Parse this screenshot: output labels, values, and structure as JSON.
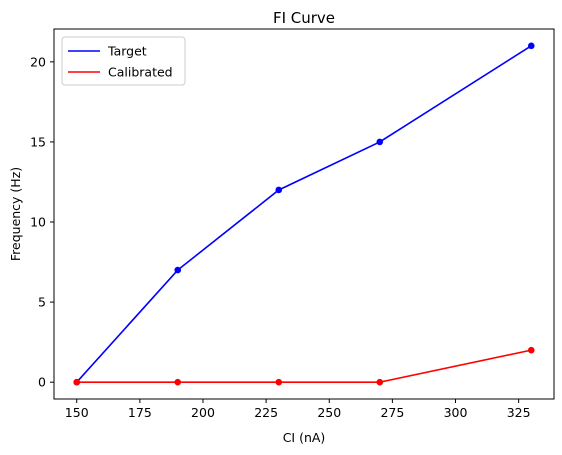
{
  "chart_data": {
    "type": "line",
    "title": "FI Curve",
    "xlabel": "CI (nA)",
    "ylabel": "Frequency (Hz)",
    "xlim": [
      141,
      339
    ],
    "ylim": [
      -1.05,
      22.05
    ],
    "xticks": [
      150,
      175,
      200,
      225,
      250,
      275,
      300,
      325
    ],
    "yticks": [
      0,
      5,
      10,
      15,
      20
    ],
    "grid": false,
    "legend_position": "top-left",
    "x": [
      150,
      190,
      230,
      270,
      330
    ],
    "series": [
      {
        "name": "Target",
        "color": "#0000ff",
        "values": [
          0,
          7,
          12,
          15,
          21
        ]
      },
      {
        "name": "Calibrated",
        "color": "#ff0000",
        "values": [
          0,
          0,
          0,
          0,
          2
        ]
      }
    ]
  }
}
